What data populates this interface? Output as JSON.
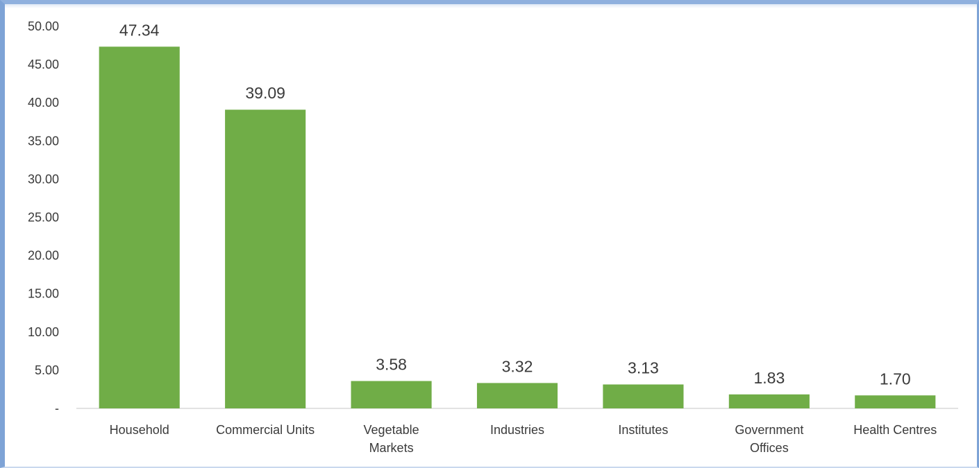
{
  "chart_data": {
    "type": "bar",
    "title": "",
    "xlabel": "",
    "ylabel": "",
    "categories": [
      [
        "Household"
      ],
      [
        "Commercial Units"
      ],
      [
        "Vegetable",
        "Markets"
      ],
      [
        "Industries"
      ],
      [
        "Institutes"
      ],
      [
        "Government",
        "Offices"
      ],
      [
        "Health Centres"
      ]
    ],
    "values": [
      47.34,
      39.09,
      3.58,
      3.32,
      3.13,
      1.83,
      1.7
    ],
    "value_labels": [
      "47.34",
      "39.09",
      "3.58",
      "3.32",
      "3.13",
      "1.83",
      "1.70"
    ],
    "ylim": [
      0,
      50
    ],
    "yticks": [
      0,
      5,
      10,
      15,
      20,
      25,
      30,
      35,
      40,
      45,
      50
    ],
    "ytick_labels": [
      "-",
      "5.00",
      "10.00",
      "15.00",
      "20.00",
      "25.00",
      "30.00",
      "35.00",
      "40.00",
      "45.00",
      "50.00"
    ],
    "grid": false,
    "legend": "none",
    "bar_color": "#70ad47",
    "axis_color": "#d9d9d9"
  }
}
